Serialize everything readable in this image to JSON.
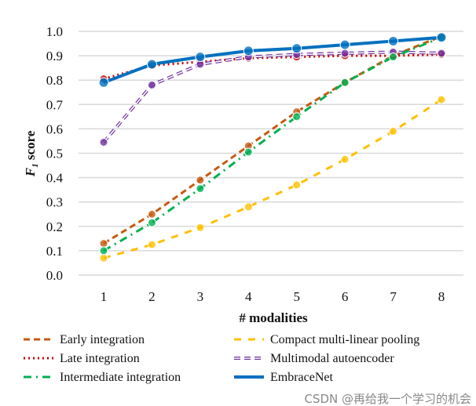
{
  "chart_data": {
    "type": "line",
    "xlabel": "# modalities",
    "ylabel": "F1 score",
    "ylabel_main": "F",
    "ylabel_sub": "1",
    "ylabel_rest": " score",
    "x": [
      1,
      2,
      3,
      4,
      5,
      6,
      7,
      8
    ],
    "ylim": [
      0,
      1.0
    ],
    "yticks": [
      "0.0",
      "0.1",
      "0.2",
      "0.3",
      "0.4",
      "0.5",
      "0.6",
      "0.7",
      "0.8",
      "0.9",
      "1.0"
    ],
    "xticks": [
      "1",
      "2",
      "3",
      "4",
      "5",
      "6",
      "7",
      "8"
    ],
    "grid": "horizontal",
    "legend_position": "bottom",
    "series": [
      {
        "name": "Early integration",
        "color": "#c55a11",
        "dash": "8,5",
        "width": 3,
        "values": [
          0.13,
          0.25,
          0.39,
          0.53,
          0.67,
          0.79,
          0.9,
          0.98
        ]
      },
      {
        "name": "Compact multi-linear pooling",
        "color": "#ffc000",
        "dash": "9,9",
        "width": 3,
        "values": [
          0.07,
          0.125,
          0.195,
          0.28,
          0.37,
          0.475,
          0.59,
          0.72
        ]
      },
      {
        "name": "Late integration",
        "color": "#c00000",
        "dash": "2,4",
        "width": 3,
        "values": [
          0.805,
          0.86,
          0.875,
          0.89,
          0.895,
          0.9,
          0.9,
          0.905
        ]
      },
      {
        "name": "Multimodal autoencoder",
        "color": "#7030a0",
        "dash": "8,5",
        "width": 3,
        "hollow": true,
        "values": [
          0.545,
          0.78,
          0.865,
          0.895,
          0.905,
          0.91,
          0.915,
          0.91
        ]
      },
      {
        "name": "Intermediate integration",
        "color": "#00b050",
        "dash": "10,6,2,6",
        "width": 3,
        "values": [
          0.1,
          0.215,
          0.355,
          0.505,
          0.65,
          0.79,
          0.895,
          0.975
        ]
      },
      {
        "name": "EmbraceNet",
        "color": "#0070c0",
        "dash": "",
        "width": 4,
        "values": [
          0.79,
          0.865,
          0.895,
          0.92,
          0.93,
          0.945,
          0.96,
          0.975
        ]
      }
    ]
  },
  "watermark": "CSDN @再给我一个学习的机会"
}
